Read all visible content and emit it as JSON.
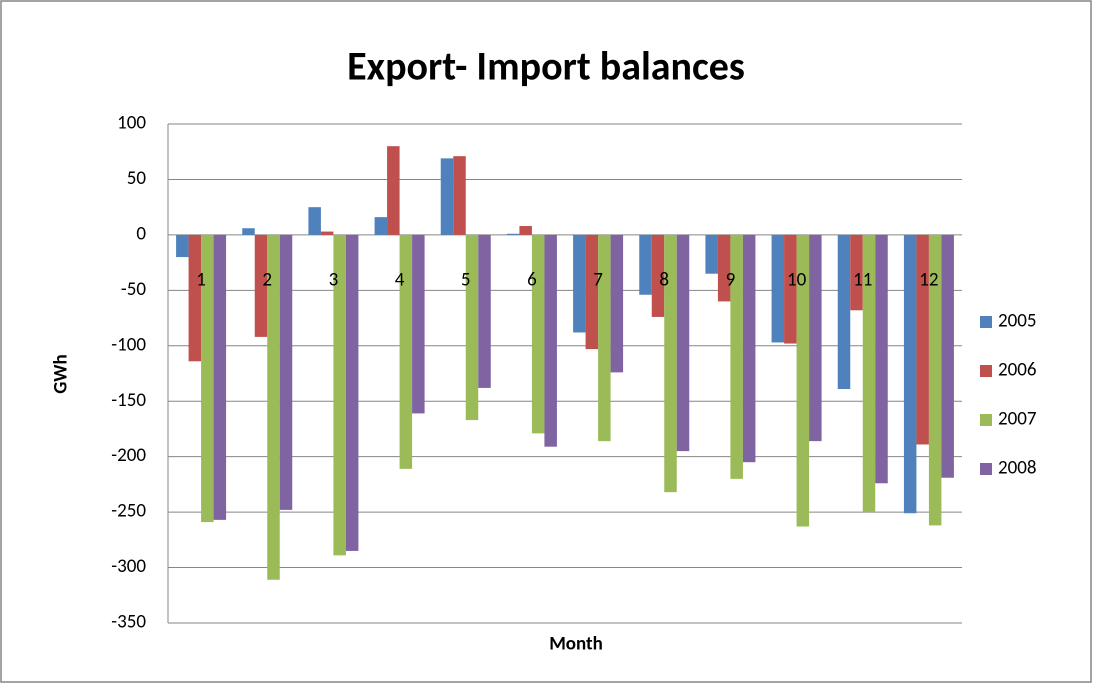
{
  "chart_data": {
    "type": "bar",
    "title": "Export- Import balances",
    "x_label": "Month",
    "y_label": "GWh",
    "categories": [
      "1",
      "2",
      "3",
      "4",
      "5",
      "6",
      "7",
      "8",
      "9",
      "10",
      "11",
      "12"
    ],
    "series": [
      {
        "name": "2005",
        "color": "#4f81bd",
        "values": [
          -20,
          6,
          25,
          16,
          69,
          1,
          -88,
          -54,
          -35,
          -97,
          -139,
          -251
        ]
      },
      {
        "name": "2006",
        "color": "#c0504d",
        "values": [
          -114,
          -92,
          3,
          80,
          71,
          8,
          -103,
          -74,
          -60,
          -98,
          -68,
          -189
        ]
      },
      {
        "name": "2007",
        "color": "#9bbb59",
        "values": [
          -259,
          -311,
          -289,
          -211,
          -167,
          -179,
          -186,
          -232,
          -220,
          -263,
          -250,
          -262
        ]
      },
      {
        "name": "2008",
        "color": "#8064a2",
        "values": [
          -257,
          -248,
          -285,
          -161,
          -138,
          -191,
          -124,
          -195,
          -205,
          -186,
          -224,
          -219
        ]
      }
    ],
    "ylim": [
      -350,
      100
    ],
    "yticks": [
      -350,
      -300,
      -250,
      -200,
      -150,
      -100,
      -50,
      0,
      50,
      100
    ],
    "grid": true,
    "legend": "right"
  }
}
